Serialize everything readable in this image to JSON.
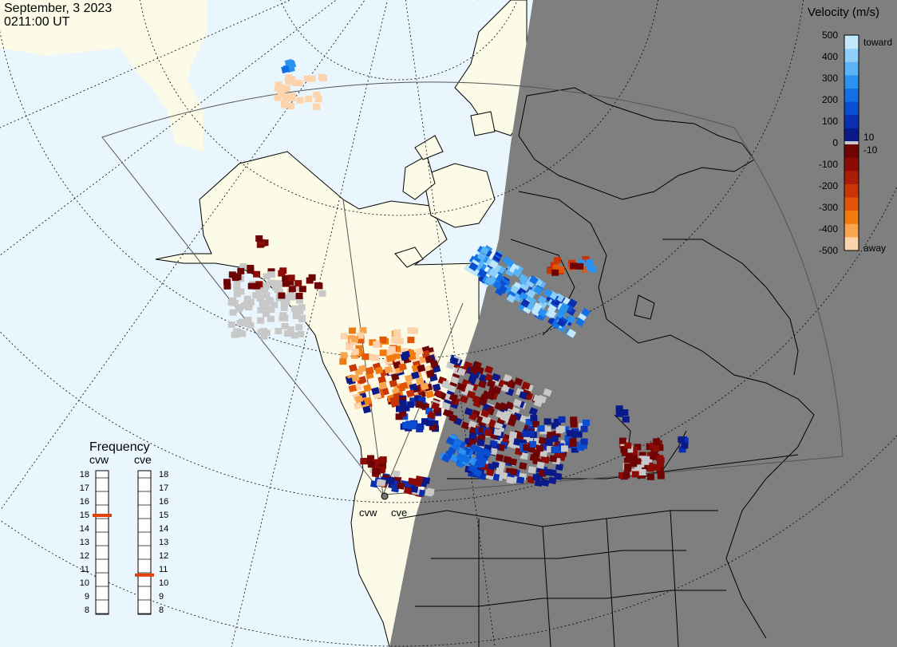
{
  "header": {
    "date": "September, 3 2023",
    "time": "0211:00 UT"
  },
  "velocity_scale": {
    "title": "Velocity (m/s)",
    "ticks": [
      "500",
      "400",
      "300",
      "200",
      "100",
      "0",
      "-100",
      "-200",
      "-300",
      "-400",
      "-500"
    ],
    "label_toward": "toward",
    "label_away": "away",
    "label_pos_threshold": "10",
    "label_neg_threshold": "-10",
    "colors_toward": [
      "#0a1a88",
      "#0a2fb0",
      "#0b4fd0",
      "#1270e4",
      "#2b92f0",
      "#5ab4f6",
      "#8fd0fa",
      "#c2e8fd"
    ],
    "colors_away": [
      "#6e0404",
      "#8c0b05",
      "#aa1d06",
      "#c83605",
      "#e25608",
      "#f07c10",
      "#f9a550",
      "#fdd3ac"
    ],
    "ground_scatter_color": "#c8c8c8"
  },
  "frequency": {
    "title": "Frequency",
    "radars": [
      "cvw",
      "cve"
    ],
    "ticks": [
      "18",
      "17",
      "16",
      "15",
      "14",
      "13",
      "12",
      "11",
      "10",
      "9",
      "8"
    ],
    "cvw_mhz": 15,
    "cve_mhz": 10.6
  },
  "stations": {
    "cvw": "cvw",
    "cve": "cve"
  },
  "colors": {
    "ocean_day": "#eaf6fe",
    "land_day": "#fbfbe8",
    "night": "#7f7f7f",
    "lines": "#000000"
  }
}
